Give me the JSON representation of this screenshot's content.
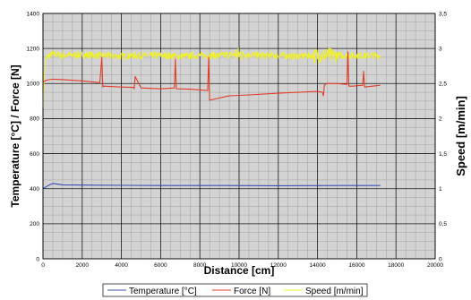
{
  "chart_data": {
    "type": "line",
    "xlabel": "Distance [cm]",
    "ylabel_left": "Temperature [°C] / Force [N]",
    "ylabel_right": "Speed [m/min]",
    "xlim": [
      0,
      20000
    ],
    "ylim_left": [
      0,
      1400
    ],
    "ylim_right": [
      0,
      3.5
    ],
    "grid": true,
    "legend_position": "bottom-center",
    "x_ticks": [
      "0",
      "2000",
      "4000",
      "6000",
      "8000",
      "10000",
      "12000",
      "14000",
      "16000",
      "18000",
      "20000"
    ],
    "y_ticks_left": [
      "0",
      "200",
      "400",
      "600",
      "800",
      "1000",
      "1200",
      "1400"
    ],
    "y_ticks_right": [
      "0",
      "0,5",
      "1",
      "1,5",
      "2",
      "2,5",
      "3",
      "3,5"
    ],
    "series": [
      {
        "name": "Temperature [°C]",
        "axis": "left",
        "color": "#3a4db5",
        "x": [
          0,
          300,
          500,
          1000,
          3000,
          6000,
          9000,
          12000,
          15000,
          17200
        ],
        "values": [
          400,
          420,
          430,
          422,
          420,
          418,
          418,
          417,
          418,
          418
        ]
      },
      {
        "name": "Force [N]",
        "axis": "left",
        "color": "#e23b2a",
        "x": [
          0,
          200,
          500,
          1000,
          2000,
          2900,
          3000,
          3050,
          3100,
          4000,
          4600,
          4650,
          4700,
          5000,
          6000,
          6700,
          6750,
          6800,
          7500,
          8400,
          8450,
          8500,
          9500,
          10500,
          12000,
          13000,
          14000,
          14250,
          14300,
          14350,
          14450,
          15000,
          15500,
          15550,
          15600,
          15800,
          16300,
          16350,
          16400,
          16800,
          17200
        ],
        "values": [
          1010,
          1020,
          1025,
          1022,
          1015,
          1005,
          1150,
          980,
          985,
          980,
          978,
          970,
          1040,
          975,
          970,
          975,
          1140,
          970,
          968,
          960,
          1150,
          905,
          930,
          935,
          945,
          950,
          955,
          950,
          930,
          990,
          1000,
          1000,
          995,
          1180,
          985,
          985,
          990,
          1070,
          980,
          985,
          990
        ]
      },
      {
        "name": "Speed [m/min]",
        "axis": "right",
        "color": "#f0f028",
        "noise": 0.05,
        "x": [
          0,
          50,
          150,
          300,
          500,
          1000,
          2000,
          3000,
          4000,
          5000,
          6000,
          7000,
          8000,
          9000,
          10000,
          11000,
          12000,
          13000,
          14000,
          15000,
          16000,
          17200
        ],
        "values": [
          2.2,
          2.55,
          2.85,
          2.9,
          2.92,
          2.9,
          2.91,
          2.9,
          2.89,
          2.9,
          2.9,
          2.89,
          2.9,
          2.9,
          2.92,
          2.9,
          2.9,
          2.89,
          2.9,
          2.9,
          2.9,
          2.9
        ]
      }
    ]
  }
}
